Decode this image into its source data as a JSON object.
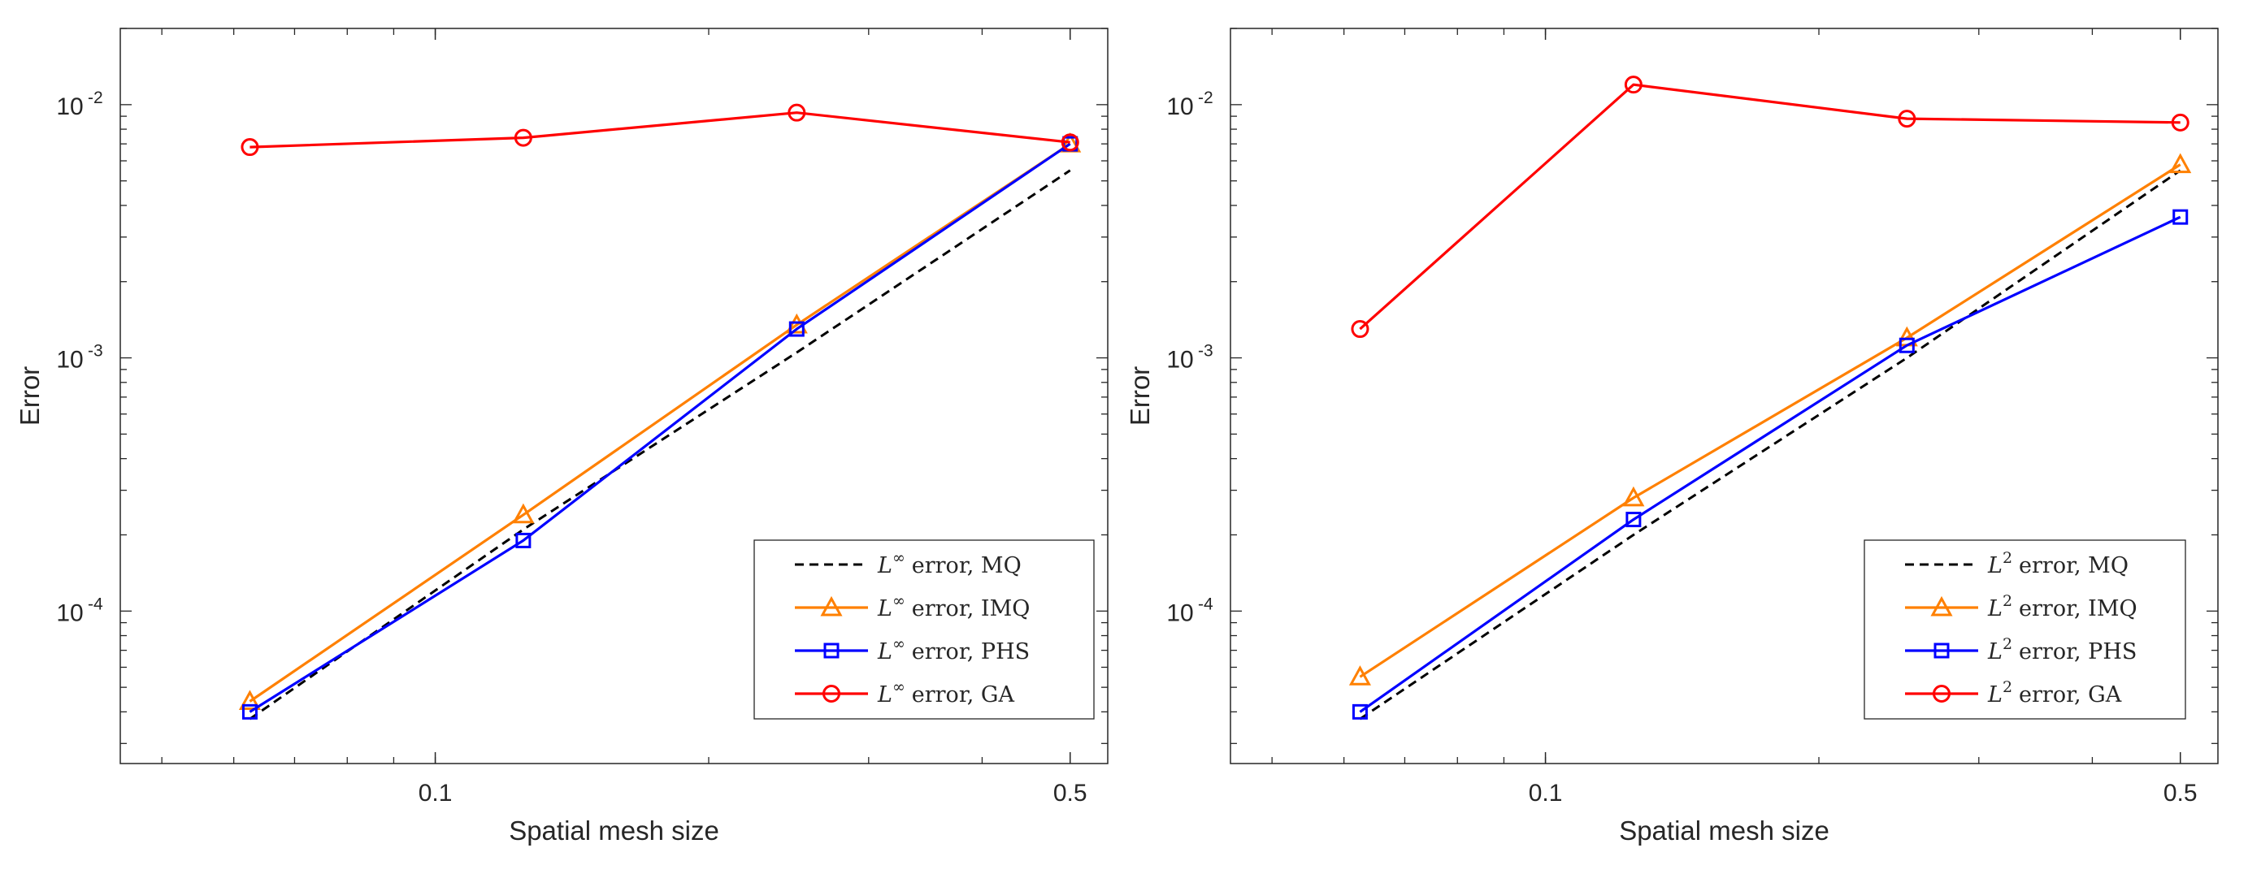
{
  "chart_data": [
    {
      "type": "line",
      "scale": "log-log",
      "xlabel": "Spatial mesh size",
      "ylabel": "Error",
      "xlim": [
        0.045,
        0.55
      ],
      "ylim": [
        2.5e-05,
        0.02
      ],
      "xticks": [
        {
          "value": 0.1,
          "label": "0.1"
        },
        {
          "value": 0.5,
          "label": "0.5"
        }
      ],
      "yticks": [
        {
          "value": 0.0001,
          "base": "10",
          "exp": "-4"
        },
        {
          "value": 0.001,
          "base": "10",
          "exp": "-3"
        },
        {
          "value": 0.01,
          "base": "10",
          "exp": "-2"
        }
      ],
      "x": [
        0.0625,
        0.125,
        0.25,
        0.5
      ],
      "series": [
        {
          "name": "MQ",
          "norm": "∞",
          "label": "error, MQ",
          "color": "#000000",
          "dash": true,
          "marker": "none",
          "values": [
            3.75e-05,
            0.00021,
            0.00105,
            0.0055
          ]
        },
        {
          "name": "IMQ",
          "norm": "∞",
          "label": "error, IMQ",
          "color": "#ff8000",
          "dash": false,
          "marker": "triangle",
          "values": [
            4.4e-05,
            0.00024,
            0.00135,
            0.007
          ]
        },
        {
          "name": "PHS",
          "norm": "∞",
          "label": "error, PHS",
          "color": "#0000ff",
          "dash": false,
          "marker": "square",
          "values": [
            4e-05,
            0.00019,
            0.0013,
            0.007
          ]
        },
        {
          "name": "GA",
          "norm": "∞",
          "label": "error, GA",
          "color": "#ff0000",
          "dash": false,
          "marker": "circle",
          "values": [
            0.0068,
            0.0074,
            0.0093,
            0.0071
          ]
        }
      ],
      "legend": {
        "symbol": "L",
        "placement": "bottom-right"
      }
    },
    {
      "type": "line",
      "scale": "log-log",
      "xlabel": "Spatial mesh size",
      "ylabel": "Error",
      "xlim": [
        0.045,
        0.55
      ],
      "ylim": [
        2.5e-05,
        0.02
      ],
      "xticks": [
        {
          "value": 0.1,
          "label": "0.1"
        },
        {
          "value": 0.5,
          "label": "0.5"
        }
      ],
      "yticks": [
        {
          "value": 0.0001,
          "base": "10",
          "exp": "-4"
        },
        {
          "value": 0.001,
          "base": "10",
          "exp": "-3"
        },
        {
          "value": 0.01,
          "base": "10",
          "exp": "-2"
        }
      ],
      "x": [
        0.0625,
        0.125,
        0.25,
        0.5
      ],
      "series": [
        {
          "name": "MQ",
          "norm": "2",
          "label": "error, MQ",
          "color": "#000000",
          "dash": true,
          "marker": "none",
          "values": [
            3.75e-05,
            0.0002,
            0.001,
            0.0055
          ]
        },
        {
          "name": "IMQ",
          "norm": "2",
          "label": "error, IMQ",
          "color": "#ff8000",
          "dash": false,
          "marker": "triangle",
          "values": [
            5.5e-05,
            0.00028,
            0.0012,
            0.0058
          ]
        },
        {
          "name": "PHS",
          "norm": "2",
          "label": "error, PHS",
          "color": "#0000ff",
          "dash": false,
          "marker": "square",
          "values": [
            4e-05,
            0.00023,
            0.00112,
            0.0036
          ]
        },
        {
          "name": "GA",
          "norm": "2",
          "label": "error, GA",
          "color": "#ff0000",
          "dash": false,
          "marker": "circle",
          "values": [
            0.0013,
            0.012,
            0.0088,
            0.0085
          ]
        }
      ],
      "legend": {
        "symbol": "L",
        "placement": "bottom-right"
      }
    }
  ]
}
